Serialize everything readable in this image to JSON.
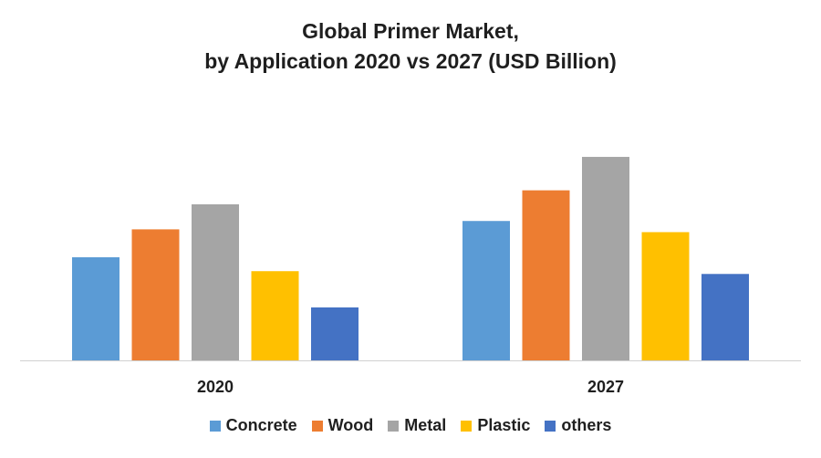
{
  "chart_data": {
    "type": "bar",
    "title_line1": "Global Primer Market,",
    "title_line2": "by Application 2020 vs 2027 (USD Billion)",
    "categories": [
      "2020",
      "2027"
    ],
    "series": [
      {
        "name": "Concrete",
        "values": [
          3.7,
          5.0
        ],
        "color": "#5B9BD5"
      },
      {
        "name": "Wood",
        "values": [
          4.7,
          6.1
        ],
        "color": "#ED7D31"
      },
      {
        "name": "Metal",
        "values": [
          5.6,
          7.3
        ],
        "color": "#A5A5A5"
      },
      {
        "name": "Plastic",
        "values": [
          3.2,
          4.6
        ],
        "color": "#FFC000"
      },
      {
        "name": "others",
        "values": [
          1.9,
          3.1
        ],
        "color": "#4472C4"
      }
    ],
    "ylim": [
      0,
      9
    ],
    "grid": false,
    "legend_position": "bottom"
  }
}
